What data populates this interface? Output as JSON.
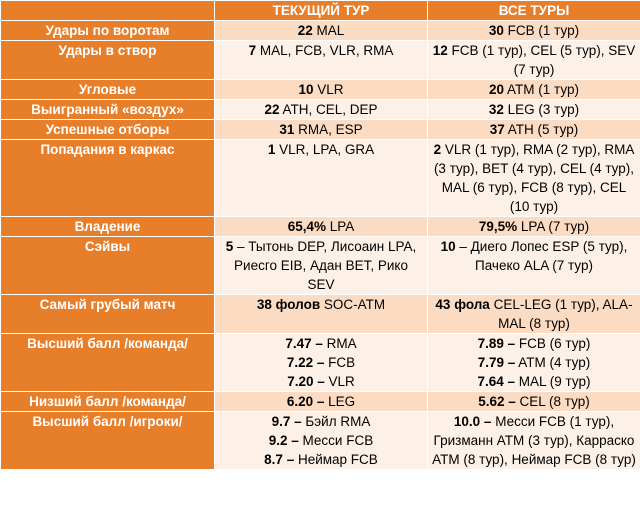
{
  "header": {
    "col1": "",
    "col2": "ТЕКУЩИЙ ТУР",
    "col3": "ВСЕ ТУРЫ"
  },
  "rows": [
    {
      "label": "Удары по воротам",
      "cur": [
        {
          "b": "22",
          "t": " MAL"
        }
      ],
      "all": [
        {
          "b": "30",
          "t": " FCB (1 тур)"
        }
      ]
    },
    {
      "label": "Удары в створ",
      "cur": [
        {
          "b": "7",
          "t": " MAL, FCB, VLR, RMA"
        }
      ],
      "all": [
        {
          "b": "12",
          "t": " FCB (1 тур), CEL (5 тур), SEV (7 тур)"
        }
      ]
    },
    {
      "label": "Угловые",
      "cur": [
        {
          "b": "10",
          "t": " VLR"
        }
      ],
      "all": [
        {
          "b": "20",
          "t": " ATM (1 тур)"
        }
      ]
    },
    {
      "label": "Выигранный «воздух»",
      "cur": [
        {
          "b": "22",
          "t": " ATH, CEL, DEP"
        }
      ],
      "all": [
        {
          "b": "32",
          "t": " LEG (3 тур)"
        }
      ]
    },
    {
      "label": "Успешные отборы",
      "cur": [
        {
          "b": "31",
          "t": " RMA, ESP"
        }
      ],
      "all": [
        {
          "b": "37",
          "t": " ATH (5 тур)"
        }
      ]
    },
    {
      "label": "Попадания в каркас",
      "cur": [
        {
          "b": "1",
          "t": " VLR, LPA, GRA"
        }
      ],
      "all": [
        {
          "b": "2",
          "t": " VLR (1 тур), RMA (2 тур), RMA (3 тур), BET (4 тур), CEL (4 тур), MAL (6 тур), FCB (8 тур), CEL (10 тур)"
        }
      ]
    },
    {
      "label": "Владение",
      "cur": [
        {
          "b": "65,4%",
          "t": " LPA"
        }
      ],
      "all": [
        {
          "b": "79,5%",
          "t": " LPA (7 тур)"
        }
      ]
    },
    {
      "label": "Сэйвы",
      "cur": [
        {
          "b": "5",
          "t": " – Тытонь DEP, Лисоаин LPA, Риесго EIB, Адан BET, Рико SEV"
        }
      ],
      "all": [
        {
          "b": "10",
          "t": " – Диего Лопес ESP (5 тур), Пачеко ALA (7 тур)"
        }
      ]
    },
    {
      "label": "Самый грубый матч",
      "cur": [
        {
          "b": "38 фолов",
          "t": " SOC-ATM"
        }
      ],
      "all": [
        {
          "b": "43 фола",
          "t": " CEL-LEG (1 тур), ALA-MAL (8 тур)"
        }
      ]
    },
    {
      "label": "Высший балл /команда/",
      "cur": [
        {
          "b": "7.47 –",
          "t": " RMA"
        },
        {
          "b": "7.22 –",
          "t": " FCB"
        },
        {
          "b": "7.20 –",
          "t": " VLR"
        }
      ],
      "all": [
        {
          "b": "7.89 –",
          "t": " FCB (6 тур)"
        },
        {
          "b": "7.79 –",
          "t": " ATM (4 тур)"
        },
        {
          "b": "7.64 –",
          "t": " MAL (9 тур)"
        }
      ]
    },
    {
      "label": "Низший балл /команда/",
      "cur": [
        {
          "b": "6.20 –",
          "t": " LEG"
        }
      ],
      "all": [
        {
          "b": "5.62 –",
          "t": " CEL (8 тур)"
        }
      ]
    },
    {
      "label": "Высший балл /игроки/",
      "cur": [
        {
          "b": "9.7 –",
          "t": " Бэйл RMA"
        },
        {
          "b": "9.2 –",
          "t": " Месси FCB"
        },
        {
          "b": "8.7 –",
          "t": " Неймар FCB"
        }
      ],
      "all": [
        {
          "b": "10.0 –",
          "t": " Месси FCB (1 тур), Гризманн ATM (3 тур), Карраско ATM (8 тур), Неймар FCB (8 тур)"
        }
      ]
    }
  ]
}
